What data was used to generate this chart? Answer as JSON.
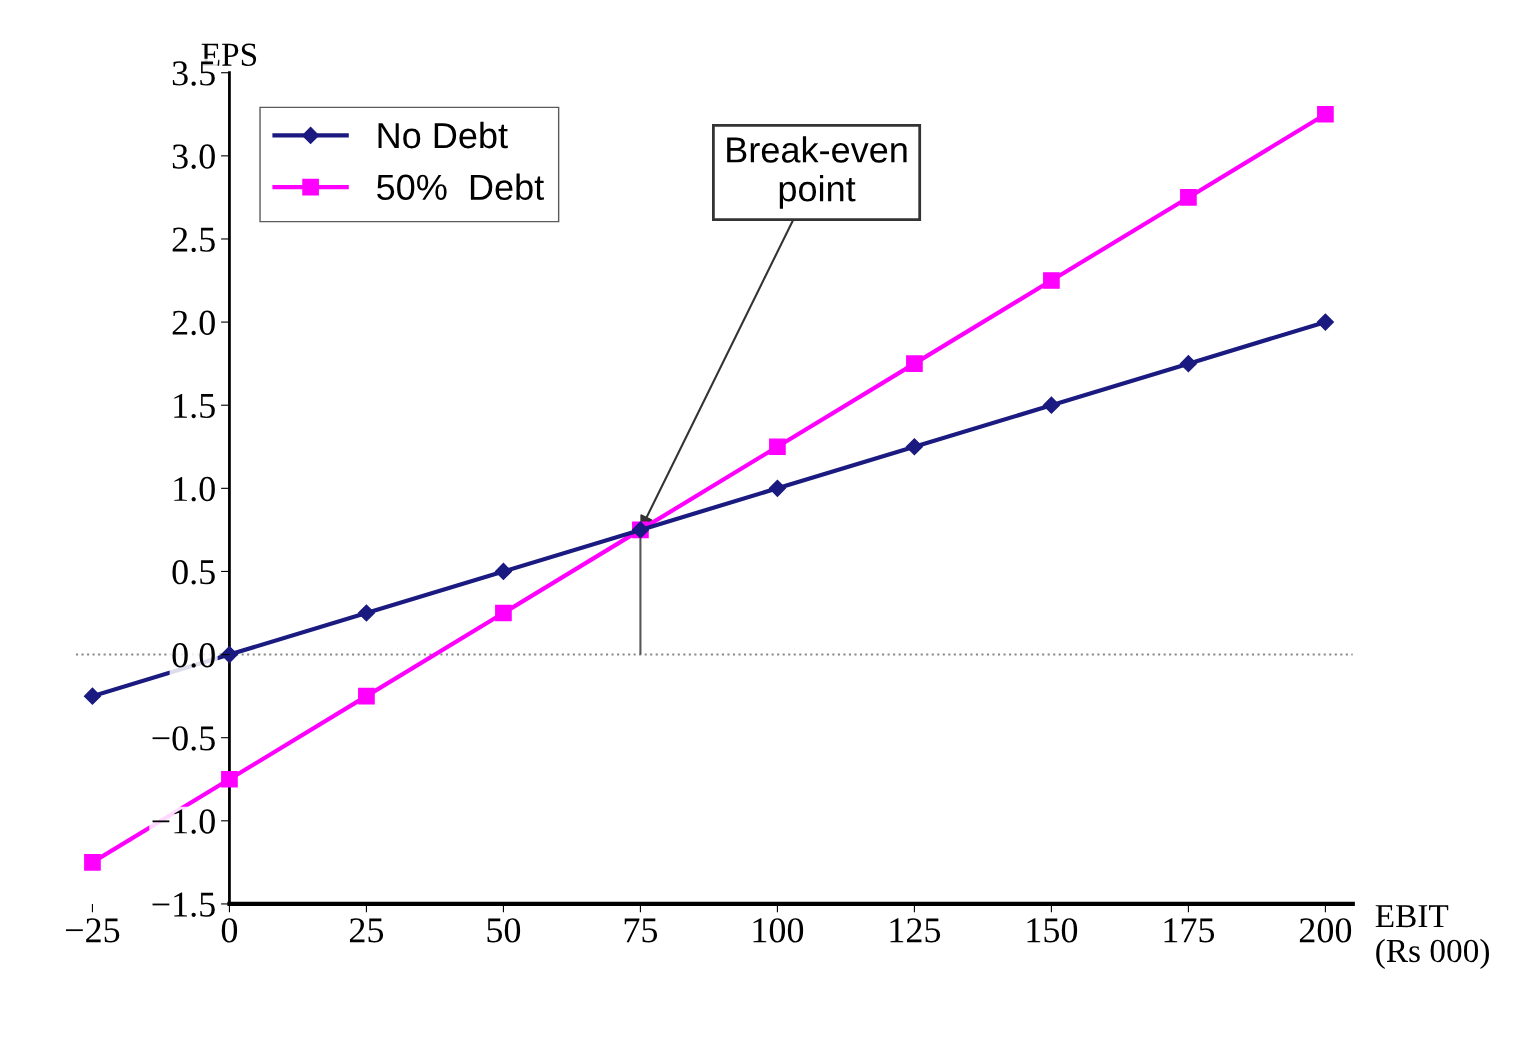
{
  "chart_data": {
    "type": "line",
    "xlabel": "EBIT\n(Rs 000)",
    "ylabel": "EPS",
    "x": [
      -25,
      0,
      25,
      50,
      75,
      100,
      125,
      150,
      175,
      200
    ],
    "series": [
      {
        "name": "No Debt",
        "color": "#1a1a80",
        "marker": "diamond",
        "values": [
          -0.25,
          0,
          0.25,
          0.5,
          0.75,
          1.0,
          1.25,
          1.5,
          1.75,
          2.0
        ]
      },
      {
        "name": "50%  Debt",
        "color": "#ff00ff",
        "marker": "square",
        "values": [
          -1.25,
          -0.75,
          -0.25,
          0.25,
          0.75,
          1.25,
          1.75,
          2.25,
          2.75,
          3.25
        ]
      }
    ],
    "xlim": [
      -28,
      205
    ],
    "xticks": [
      {
        "value": -25,
        "label": "−25"
      },
      0,
      25,
      50,
      75,
      100,
      125,
      150,
      175,
      200
    ],
    "ylim": [
      -1.5,
      3.5
    ],
    "yticks": [
      {
        "value": -1.5,
        "label": "−1.5"
      },
      {
        "value": -1.0,
        "label": "−1.0"
      },
      {
        "value": -0.5,
        "label": "−0.5"
      },
      {
        "value": 0,
        "label": "0.0"
      },
      0.5,
      {
        "value": 1.0,
        "label": "1.0"
      },
      1.5,
      {
        "value": 2.0,
        "label": "2.0"
      },
      2.5,
      {
        "value": 3.0,
        "label": "3.0"
      },
      3.5
    ],
    "ref_lines": [
      {
        "axis": "y",
        "value": 0,
        "line_style": "dotted",
        "color": "#888888"
      },
      {
        "axis": "x",
        "value": 75,
        "color": "#555555"
      }
    ],
    "annotations": [
      {
        "text": "Break-even\npoint",
        "x": 75,
        "y": 0.75
      }
    ],
    "legend": "top left",
    "grid": false,
    "line_style": "solid"
  }
}
